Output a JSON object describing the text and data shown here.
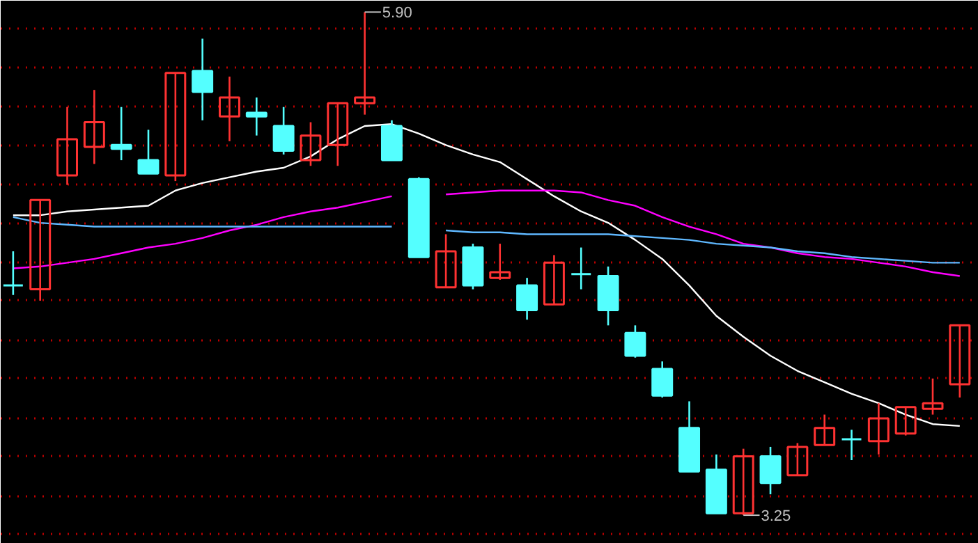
{
  "chart_data": {
    "type": "candlestick",
    "categories": [
      null,
      null,
      null,
      null,
      null,
      null,
      null,
      null,
      null,
      null,
      null,
      null,
      null,
      null,
      null,
      null,
      null,
      null,
      null,
      null,
      null,
      null,
      null,
      null,
      null,
      null,
      null,
      null,
      null,
      null,
      null,
      null,
      null,
      null,
      null,
      null
    ],
    "ohlc": [
      [
        4.46,
        4.64,
        4.41,
        4.46
      ],
      [
        4.44,
        4.91,
        4.38,
        4.91
      ],
      [
        5.04,
        5.4,
        4.99,
        5.23
      ],
      [
        5.19,
        5.49,
        5.1,
        5.32
      ],
      [
        5.2,
        5.4,
        5.12,
        5.18
      ],
      [
        5.12,
        5.28,
        5.05,
        5.05
      ],
      [
        5.04,
        5.58,
        5.01,
        5.58
      ],
      [
        5.59,
        5.76,
        5.33,
        5.48
      ],
      [
        5.35,
        5.56,
        5.22,
        5.45
      ],
      [
        5.37,
        5.45,
        5.25,
        5.35
      ],
      [
        5.3,
        5.4,
        5.15,
        5.17
      ],
      [
        5.12,
        5.32,
        5.09,
        5.25
      ],
      [
        5.2,
        5.42,
        5.09,
        5.42
      ],
      [
        5.42,
        5.9,
        5.36,
        5.45
      ],
      [
        5.3,
        5.33,
        5.12,
        5.12
      ],
      [
        5.02,
        5.03,
        4.61,
        4.61
      ],
      [
        4.45,
        4.73,
        4.45,
        4.64
      ],
      [
        4.66,
        4.68,
        4.44,
        4.46
      ],
      [
        4.5,
        4.68,
        4.49,
        4.53
      ],
      [
        4.46,
        4.5,
        4.28,
        4.33
      ],
      [
        4.36,
        4.62,
        4.36,
        4.58
      ],
      [
        4.52,
        4.66,
        4.44,
        4.52
      ],
      [
        4.51,
        4.56,
        4.25,
        4.33
      ],
      [
        4.21,
        4.25,
        4.08,
        4.09
      ],
      [
        4.02,
        4.06,
        3.87,
        3.88
      ],
      [
        3.71,
        3.85,
        3.48,
        3.48
      ],
      [
        3.49,
        3.57,
        3.26,
        3.26
      ],
      [
        3.26,
        3.6,
        3.25,
        3.56
      ],
      [
        3.56,
        3.61,
        3.36,
        3.42
      ],
      [
        3.46,
        3.63,
        3.46,
        3.61
      ],
      [
        3.62,
        3.78,
        3.62,
        3.71
      ],
      [
        3.65,
        3.7,
        3.54,
        3.65
      ],
      [
        3.64,
        3.84,
        3.57,
        3.76
      ],
      [
        3.68,
        3.82,
        3.67,
        3.82
      ],
      [
        3.81,
        3.97,
        3.78,
        3.84
      ],
      [
        3.94,
        4.25,
        3.87,
        4.25
      ]
    ],
    "colors": [
      "#54ffff",
      "#ff3232",
      "#ff3232",
      "#ff3232",
      "#54ffff",
      "#54ffff",
      "#ff3232",
      "#54ffff",
      "#ff3232",
      "#54ffff",
      "#54ffff",
      "#ff3232",
      "#ff3232",
      "#ff3232",
      "#54ffff",
      "#54ffff",
      "#ff3232",
      "#54ffff",
      "#ff3232",
      "#54ffff",
      "#ff3232",
      "#54ffff",
      "#54ffff",
      "#54ffff",
      "#54ffff",
      "#54ffff",
      "#54ffff",
      "#ff3232",
      "#54ffff",
      "#ff3232",
      "#ff3232",
      "#54ffff",
      "#ff3232",
      "#ff3232",
      "#ff3232",
      "#ff3232"
    ],
    "series": [
      {
        "type": "line",
        "color": "#ffffff",
        "values": [
          4.83,
          4.83,
          4.85,
          4.86,
          4.87,
          4.88,
          4.96,
          5.0,
          5.03,
          5.06,
          5.08,
          5.14,
          5.23,
          5.3,
          5.31,
          5.26,
          5.2,
          5.15,
          5.11,
          5.02,
          4.93,
          4.85,
          4.79,
          4.7,
          4.6,
          4.46,
          4.3,
          4.19,
          4.09,
          4.01,
          3.95,
          3.89,
          3.84,
          3.78,
          3.73,
          3.72
        ]
      },
      {
        "type": "line",
        "color": "#ff00ff",
        "values": [
          4.55,
          4.56,
          4.58,
          4.6,
          4.63,
          4.66,
          4.68,
          4.71,
          4.75,
          4.78,
          4.82,
          4.85,
          4.87,
          4.9,
          4.93,
          null,
          4.94,
          4.95,
          4.96,
          4.96,
          4.96,
          4.95,
          4.91,
          4.88,
          4.82,
          4.77,
          4.73,
          4.68,
          4.66,
          4.63,
          4.61,
          4.6,
          4.58,
          4.56,
          4.53,
          4.51
        ]
      },
      {
        "type": "line",
        "color": "#5fb8ff",
        "values": [
          4.82,
          4.79,
          4.78,
          4.77,
          4.77,
          4.77,
          4.77,
          4.77,
          4.77,
          4.77,
          4.77,
          4.77,
          4.77,
          4.77,
          4.77,
          null,
          4.75,
          4.74,
          4.74,
          4.73,
          4.73,
          4.73,
          4.73,
          4.72,
          4.71,
          4.7,
          4.68,
          4.67,
          4.66,
          4.64,
          4.63,
          4.61,
          4.6,
          4.59,
          4.58,
          4.58
        ]
      }
    ],
    "ylim": [
      3.1,
      5.96
    ],
    "yticks": [
      {
        "value": 5.81,
        "label": null
      },
      {
        "value": 5.61,
        "label": null
      },
      {
        "value": 5.4,
        "label": null
      },
      {
        "value": 5.2,
        "label": null
      },
      {
        "value": 4.99,
        "label": null
      },
      {
        "value": 4.79,
        "label": null
      },
      {
        "value": 4.58,
        "label": null
      },
      {
        "value": 4.38,
        "label": null
      },
      {
        "value": 4.17,
        "label": null
      },
      {
        "value": 3.97,
        "label": null
      },
      {
        "value": 3.76,
        "label": null
      },
      {
        "value": 3.56,
        "label": null
      },
      {
        "value": 3.35,
        "label": null
      },
      {
        "value": 3.15,
        "label": null
      }
    ],
    "grid": "y",
    "tick_labels": false,
    "annotations": [
      "5.90",
      "3.25"
    ]
  }
}
